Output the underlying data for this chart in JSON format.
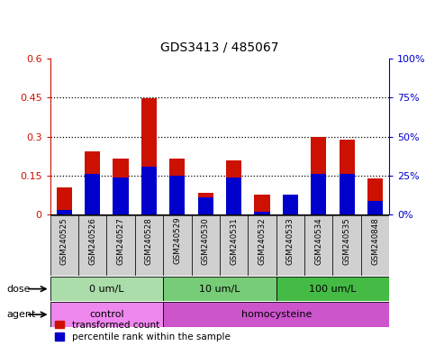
{
  "title": "GDS3413 / 485067",
  "samples": [
    "GSM240525",
    "GSM240526",
    "GSM240527",
    "GSM240528",
    "GSM240529",
    "GSM240530",
    "GSM240531",
    "GSM240532",
    "GSM240533",
    "GSM240534",
    "GSM240535",
    "GSM240848"
  ],
  "red_values": [
    0.105,
    0.245,
    0.215,
    0.448,
    0.215,
    0.085,
    0.21,
    0.075,
    0.065,
    0.3,
    0.29,
    0.14
  ],
  "blue_pct": [
    3,
    26,
    24,
    31,
    25,
    11,
    24,
    2,
    13,
    26,
    26,
    9
  ],
  "left_ylim": [
    0.0,
    0.6
  ],
  "right_ylim": [
    0,
    100
  ],
  "left_yticks": [
    0.0,
    0.15,
    0.3,
    0.45,
    0.6
  ],
  "right_yticks": [
    0,
    25,
    50,
    75,
    100
  ],
  "left_yticklabels": [
    "0",
    "0.15",
    "0.3",
    "0.45",
    "0.6"
  ],
  "right_yticklabels": [
    "0%",
    "25%",
    "50%",
    "75%",
    "100%"
  ],
  "dose_groups": [
    {
      "label": "0 um/L",
      "start": 0,
      "end": 4,
      "color": "#aaddaa"
    },
    {
      "label": "10 um/L",
      "start": 4,
      "end": 8,
      "color": "#77cc77"
    },
    {
      "label": "100 um/L",
      "start": 8,
      "end": 12,
      "color": "#44bb44"
    }
  ],
  "agent_groups": [
    {
      "label": "control",
      "start": 0,
      "end": 4,
      "color": "#ee88ee"
    },
    {
      "label": "homocysteine",
      "start": 4,
      "end": 12,
      "color": "#cc55cc"
    }
  ],
  "red_color": "#cc1100",
  "blue_color": "#0000cc",
  "bar_bg_color": "#d0d0d0",
  "legend_red": "transformed count",
  "legend_blue": "percentile rank within the sample"
}
